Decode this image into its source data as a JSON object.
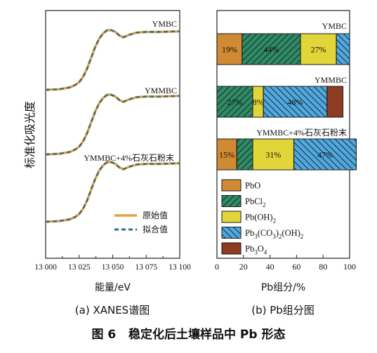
{
  "figure": {
    "caption": "图 6   稳定化后土壤样品中 Pb 形态"
  },
  "chart_data": [
    {
      "type": "line",
      "panel_label": "(a)  XANES谱图",
      "xlabel": "能量/eV",
      "ylabel": "标准化吸光度",
      "xlim": [
        13000,
        13100
      ],
      "xticks": [
        "13 000",
        "13 025",
        "13 050",
        "13 075",
        "13 100"
      ],
      "y_tick_labels": false,
      "legend": {
        "position": "lower-right",
        "entries": [
          "原始值",
          "拟合值"
        ]
      },
      "colors": {
        "original": "#E8A33A",
        "fitted": "#2E6E8E"
      },
      "offset_step": 0.85,
      "series": [
        {
          "sample": "YMBC",
          "x": [
            13000,
            13010,
            13018,
            13022,
            13025,
            13028,
            13031,
            13034,
            13037,
            13040,
            13043,
            13046,
            13049,
            13052,
            13055,
            13058,
            13062,
            13068,
            13075,
            13085,
            13100
          ],
          "values": [
            0.0,
            0.01,
            0.04,
            0.08,
            0.13,
            0.22,
            0.36,
            0.54,
            0.72,
            0.86,
            0.95,
            1.0,
            1.0,
            0.97,
            0.91,
            0.88,
            0.92,
            0.96,
            0.97,
            0.97,
            0.98
          ]
        },
        {
          "sample": "YMMBC",
          "x": [
            13000,
            13010,
            13018,
            13022,
            13025,
            13028,
            13031,
            13034,
            13037,
            13040,
            13043,
            13046,
            13049,
            13052,
            13055,
            13058,
            13062,
            13068,
            13075,
            13085,
            13100
          ],
          "values": [
            0.0,
            0.01,
            0.04,
            0.08,
            0.13,
            0.22,
            0.36,
            0.54,
            0.72,
            0.86,
            0.95,
            1.0,
            1.0,
            0.97,
            0.91,
            0.88,
            0.92,
            0.96,
            0.97,
            0.97,
            0.98
          ]
        },
        {
          "sample": "YMMBC+4%石灰石粉末",
          "x": [
            13000,
            13010,
            13018,
            13022,
            13025,
            13028,
            13031,
            13034,
            13037,
            13040,
            13043,
            13046,
            13049,
            13052,
            13055,
            13058,
            13062,
            13068,
            13075,
            13085,
            13100
          ],
          "values": [
            0.0,
            0.01,
            0.04,
            0.08,
            0.13,
            0.22,
            0.36,
            0.54,
            0.72,
            0.86,
            0.95,
            1.0,
            1.0,
            0.97,
            0.91,
            0.88,
            0.92,
            0.96,
            0.97,
            0.97,
            0.98
          ]
        }
      ]
    },
    {
      "type": "bar",
      "orientation": "horizontal",
      "stacked": true,
      "panel_label": "(b)  Pb组分图",
      "xlabel": "Pb组分/%",
      "xlim": [
        0,
        100
      ],
      "xticks": [
        "0",
        "20",
        "40",
        "60",
        "80",
        "100"
      ],
      "legend": {
        "position": "bottom-inside"
      },
      "components": [
        {
          "key": "pbo",
          "label": "PbO",
          "color": "#D08A33",
          "hatch": "none"
        },
        {
          "key": "pbcl2",
          "label": "PbCl",
          "sub": "2",
          "color": "#2E8B66",
          "hatch": "fwd"
        },
        {
          "key": "pboh2",
          "label": "Pb(OH)",
          "sub": "2",
          "color": "#E2D53A",
          "hatch": "none"
        },
        {
          "key": "hydro",
          "label_parts": [
            "Pb",
            "3",
            "(CO",
            "3",
            ")",
            "2",
            "(OH)",
            "2"
          ],
          "color": "#4FA8DF",
          "hatch": "back"
        },
        {
          "key": "pb3o4",
          "label": "Pb",
          "sub": "3",
          "label_tail": "O",
          "sub2": "4",
          "color": "#8E3B24",
          "hatch": "none"
        }
      ],
      "categories": [
        "YMBC",
        "YMMBC",
        "YMMBC+4%石灰石粉末"
      ],
      "data": [
        [
          19,
          44,
          27,
          10,
          0
        ],
        [
          0,
          27,
          8,
          48,
          12
        ],
        [
          15,
          12,
          31,
          47,
          0
        ]
      ],
      "data_labels": [
        [
          "19%",
          "44%",
          "27%",
          "",
          ""
        ],
        [
          "",
          "27%",
          "8%",
          "48%",
          ""
        ],
        [
          "15%",
          "",
          "31%",
          "47%",
          ""
        ]
      ]
    }
  ]
}
